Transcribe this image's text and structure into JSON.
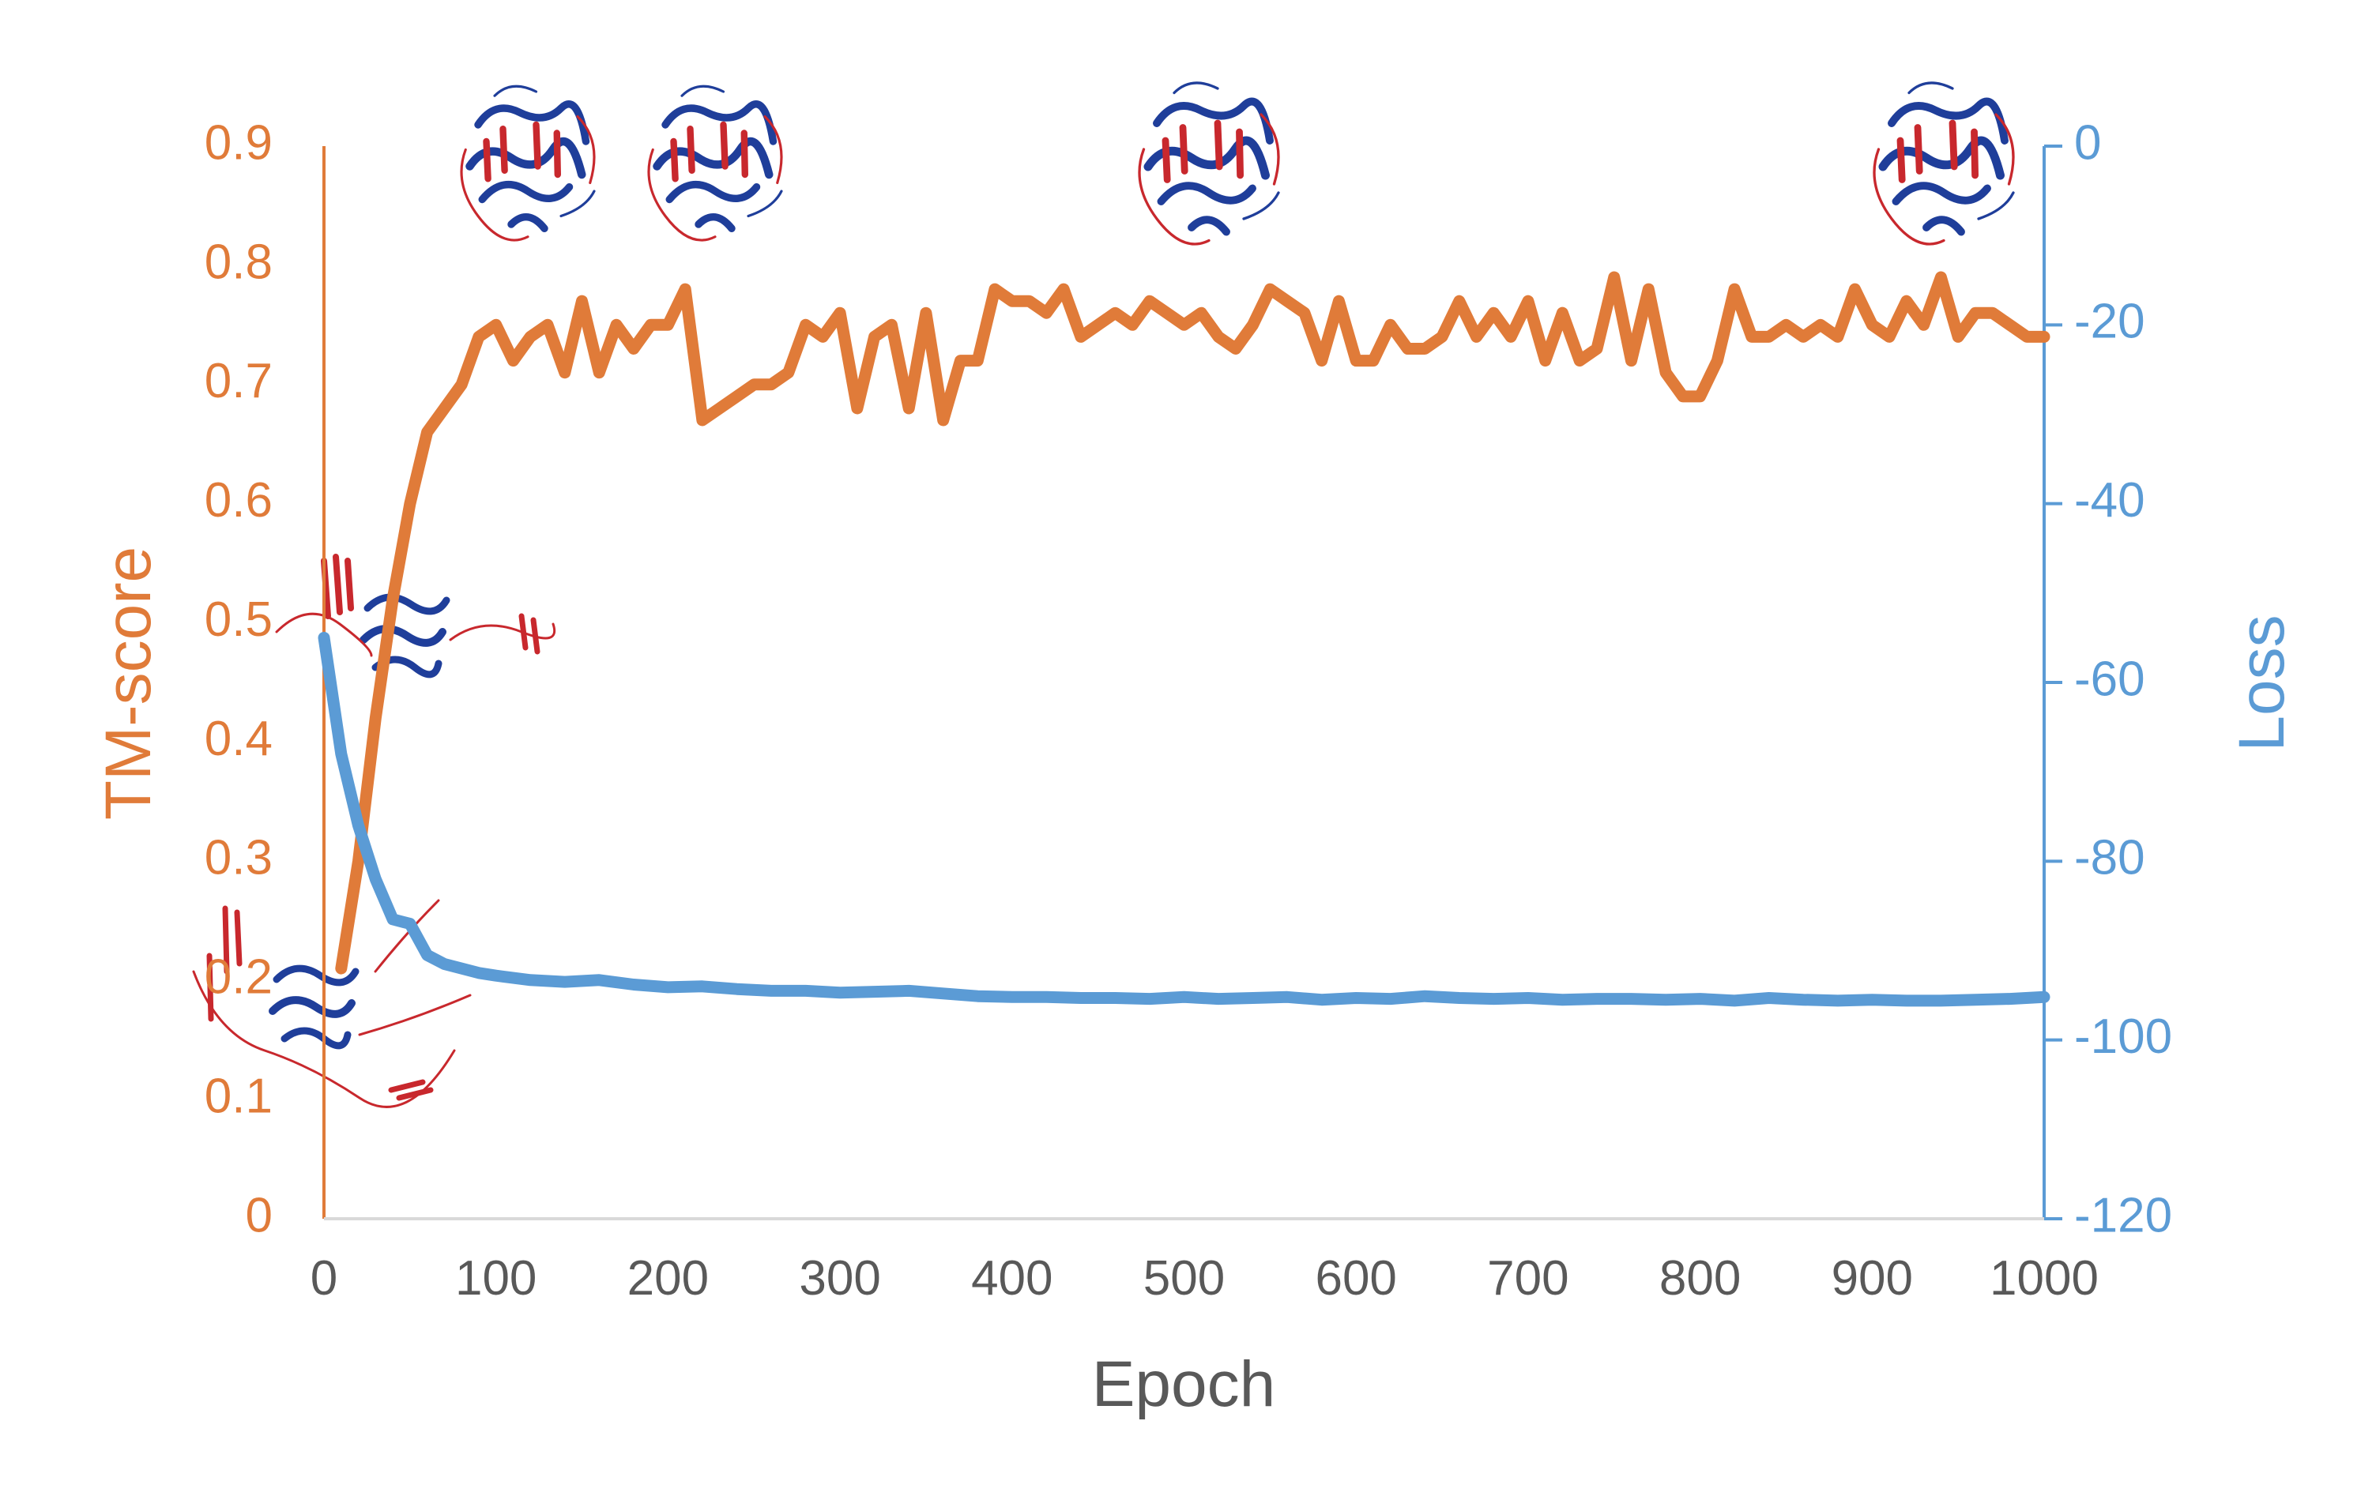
{
  "chart_data": {
    "type": "line",
    "xlabel": "Epoch",
    "ylabel_left": "TM-score",
    "ylabel_right": "Loss",
    "xlim": [
      0,
      1000
    ],
    "ylim_left": [
      0,
      0.9
    ],
    "ylim_right": [
      -120,
      0
    ],
    "x_ticks": [
      "0",
      "100",
      "200",
      "300",
      "400",
      "500",
      "600",
      "700",
      "800",
      "900",
      "1000"
    ],
    "y_left_ticks": [
      "0",
      "0.1",
      "0.2",
      "0.3",
      "0.4",
      "0.5",
      "0.6",
      "0.7",
      "0.8",
      "0.9"
    ],
    "y_right_ticks": [
      "0",
      "-20",
      "-40",
      "-60",
      "-80",
      "-100",
      "-120"
    ],
    "grid": false,
    "legend": "none",
    "colors": {
      "tm_score": "#E07B39",
      "loss": "#5B9BD5",
      "axis": "#D9D9D9",
      "protein_red": "#C8282D",
      "protein_blue": "#1F3E9A"
    },
    "series": [
      {
        "name": "TM-score",
        "axis": "left",
        "x": [
          10,
          20,
          30,
          40,
          50,
          60,
          70,
          80,
          90,
          100,
          110,
          120,
          130,
          140,
          150,
          160,
          170,
          180,
          190,
          200,
          210,
          220,
          230,
          240,
          250,
          260,
          270,
          280,
          290,
          300,
          310,
          320,
          330,
          340,
          350,
          360,
          370,
          380,
          390,
          400,
          410,
          420,
          430,
          440,
          450,
          460,
          470,
          480,
          490,
          500,
          510,
          520,
          530,
          540,
          550,
          560,
          570,
          580,
          590,
          600,
          610,
          620,
          630,
          640,
          650,
          660,
          670,
          680,
          690,
          700,
          710,
          720,
          730,
          740,
          750,
          760,
          770,
          780,
          790,
          800,
          810,
          820,
          830,
          840,
          850,
          860,
          870,
          880,
          890,
          900,
          910,
          920,
          930,
          940,
          950,
          960,
          970,
          980,
          990,
          1000
        ],
        "values": [
          0.21,
          0.3,
          0.42,
          0.52,
          0.6,
          0.66,
          0.68,
          0.7,
          0.74,
          0.75,
          0.72,
          0.74,
          0.75,
          0.71,
          0.77,
          0.71,
          0.75,
          0.73,
          0.75,
          0.75,
          0.78,
          0.67,
          0.68,
          0.69,
          0.7,
          0.7,
          0.71,
          0.75,
          0.74,
          0.76,
          0.68,
          0.74,
          0.75,
          0.68,
          0.76,
          0.67,
          0.72,
          0.72,
          0.78,
          0.77,
          0.77,
          0.76,
          0.78,
          0.74,
          0.75,
          0.76,
          0.75,
          0.77,
          0.76,
          0.75,
          0.76,
          0.74,
          0.73,
          0.75,
          0.78,
          0.77,
          0.76,
          0.72,
          0.77,
          0.72,
          0.72,
          0.75,
          0.73,
          0.73,
          0.74,
          0.77,
          0.74,
          0.76,
          0.74,
          0.77,
          0.72,
          0.76,
          0.72,
          0.73,
          0.79,
          0.72,
          0.78,
          0.71,
          0.69,
          0.69,
          0.72,
          0.78,
          0.74,
          0.74,
          0.75,
          0.74,
          0.75,
          0.74,
          0.78,
          0.75,
          0.74,
          0.77,
          0.75,
          0.79,
          0.74,
          0.76,
          0.76,
          0.75,
          0.74,
          0.74
        ]
      },
      {
        "name": "Loss",
        "axis": "right",
        "x": [
          0,
          10,
          20,
          30,
          40,
          50,
          60,
          70,
          80,
          90,
          100,
          120,
          140,
          160,
          180,
          200,
          220,
          240,
          260,
          280,
          300,
          320,
          340,
          360,
          380,
          400,
          420,
          440,
          460,
          480,
          500,
          520,
          540,
          560,
          580,
          600,
          620,
          640,
          660,
          680,
          700,
          720,
          740,
          760,
          780,
          800,
          820,
          840,
          860,
          880,
          900,
          920,
          940,
          960,
          980,
          1000
        ],
        "values": [
          -55,
          -68,
          -76,
          -82,
          -86.5,
          -87,
          -90.5,
          -91.5,
          -92,
          -92.5,
          -92.8,
          -93.3,
          -93.5,
          -93.3,
          -93.8,
          -94.1,
          -94.0,
          -94.3,
          -94.5,
          -94.5,
          -94.7,
          -94.6,
          -94.5,
          -94.8,
          -95.1,
          -95.2,
          -95.2,
          -95.3,
          -95.3,
          -95.4,
          -95.2,
          -95.4,
          -95.3,
          -95.2,
          -95.5,
          -95.3,
          -95.4,
          -95.1,
          -95.3,
          -95.4,
          -95.3,
          -95.5,
          -95.4,
          -95.4,
          -95.5,
          -95.4,
          -95.6,
          -95.3,
          -95.5,
          -95.6,
          -95.5,
          -95.6,
          -95.6,
          -95.5,
          -95.4,
          -95.2
        ]
      }
    ]
  }
}
